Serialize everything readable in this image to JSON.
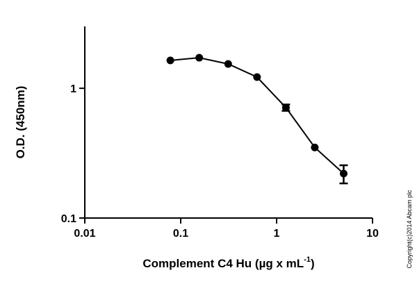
{
  "chart_data": {
    "type": "line",
    "x_label": {
      "text": "Complement C4 Hu (µg x mL",
      "superscript": "-1",
      "suffix": ")"
    },
    "y_label": "O.D. (450nm)",
    "copyright": "Copyright(c)2014 Abcam plc",
    "x": [
      0.078,
      0.156,
      0.3125,
      0.625,
      1.25,
      2.5,
      5
    ],
    "series": [
      {
        "color": "#000000",
        "values": [
          1.64,
          1.72,
          1.54,
          1.22,
          0.71,
          0.35,
          0.22
        ],
        "errors": [
          null,
          null,
          null,
          null,
          0.04,
          null,
          0.035
        ]
      }
    ],
    "xlim": [
      0.01,
      10
    ],
    "xticks": [
      0.01,
      0.1,
      1,
      10
    ],
    "ylim": [
      0.1,
      3
    ],
    "yticks": [
      0.1,
      1
    ],
    "xscale": "log",
    "yscale": "log",
    "grid": false
  }
}
